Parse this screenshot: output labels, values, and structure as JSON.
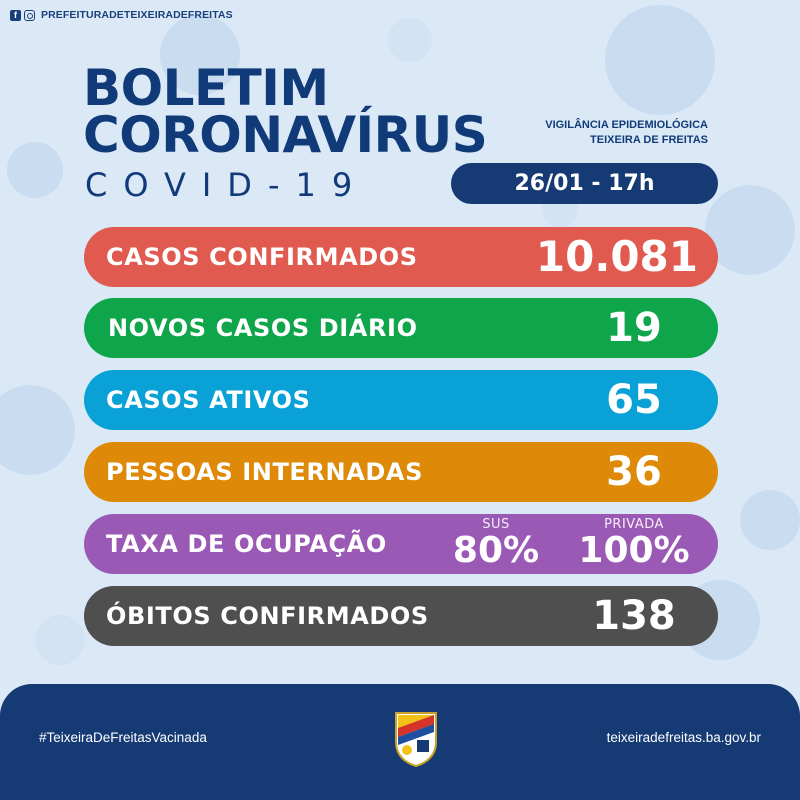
{
  "header": {
    "social_icons": [
      "facebook-icon",
      "instagram-icon"
    ],
    "handle": "PREFEITURADETEIXEIRADEFREITAS"
  },
  "title": {
    "line1": "BOLETIM",
    "line2": "CORONAVÍRUS",
    "subtitle": "COVID-19"
  },
  "agency": {
    "line1": "VIGILÂNCIA EPIDEMIOLÓGICA",
    "line2": "TEIXEIRA DE FREITAS"
  },
  "date": "26/01 - 17h",
  "stats": {
    "confirmados": {
      "label": "CASOS CONFIRMADOS",
      "value": "10.081",
      "color": "#e05a4f"
    },
    "novos": {
      "label": "NOVOS CASOS DIÁRIO",
      "value": "19",
      "color": "#0fa54a"
    },
    "ativos": {
      "label": "CASOS ATIVOS",
      "value": "65",
      "color": "#0aa2d6"
    },
    "internadas": {
      "label": "PESSOAS INTERNADAS",
      "value": "36",
      "color": "#de8a08"
    },
    "taxa": {
      "label": "TAXA DE OCUPAÇÃO",
      "color": "#9b59b6",
      "sus_label": "SUS",
      "sus_value": "80%",
      "privada_label": "PRIVADA",
      "privada_value": "100%"
    },
    "obitos": {
      "label": "ÓBITOS CONFIRMADOS",
      "value": "138",
      "color": "#4f4f4f"
    }
  },
  "footer": {
    "hashtag": "#TeixeiraDeFreitasVacinada",
    "site": "teixeiradefreitas.ba.gov.br",
    "crest_icon": "city-crest-icon",
    "background": "#153a74"
  }
}
